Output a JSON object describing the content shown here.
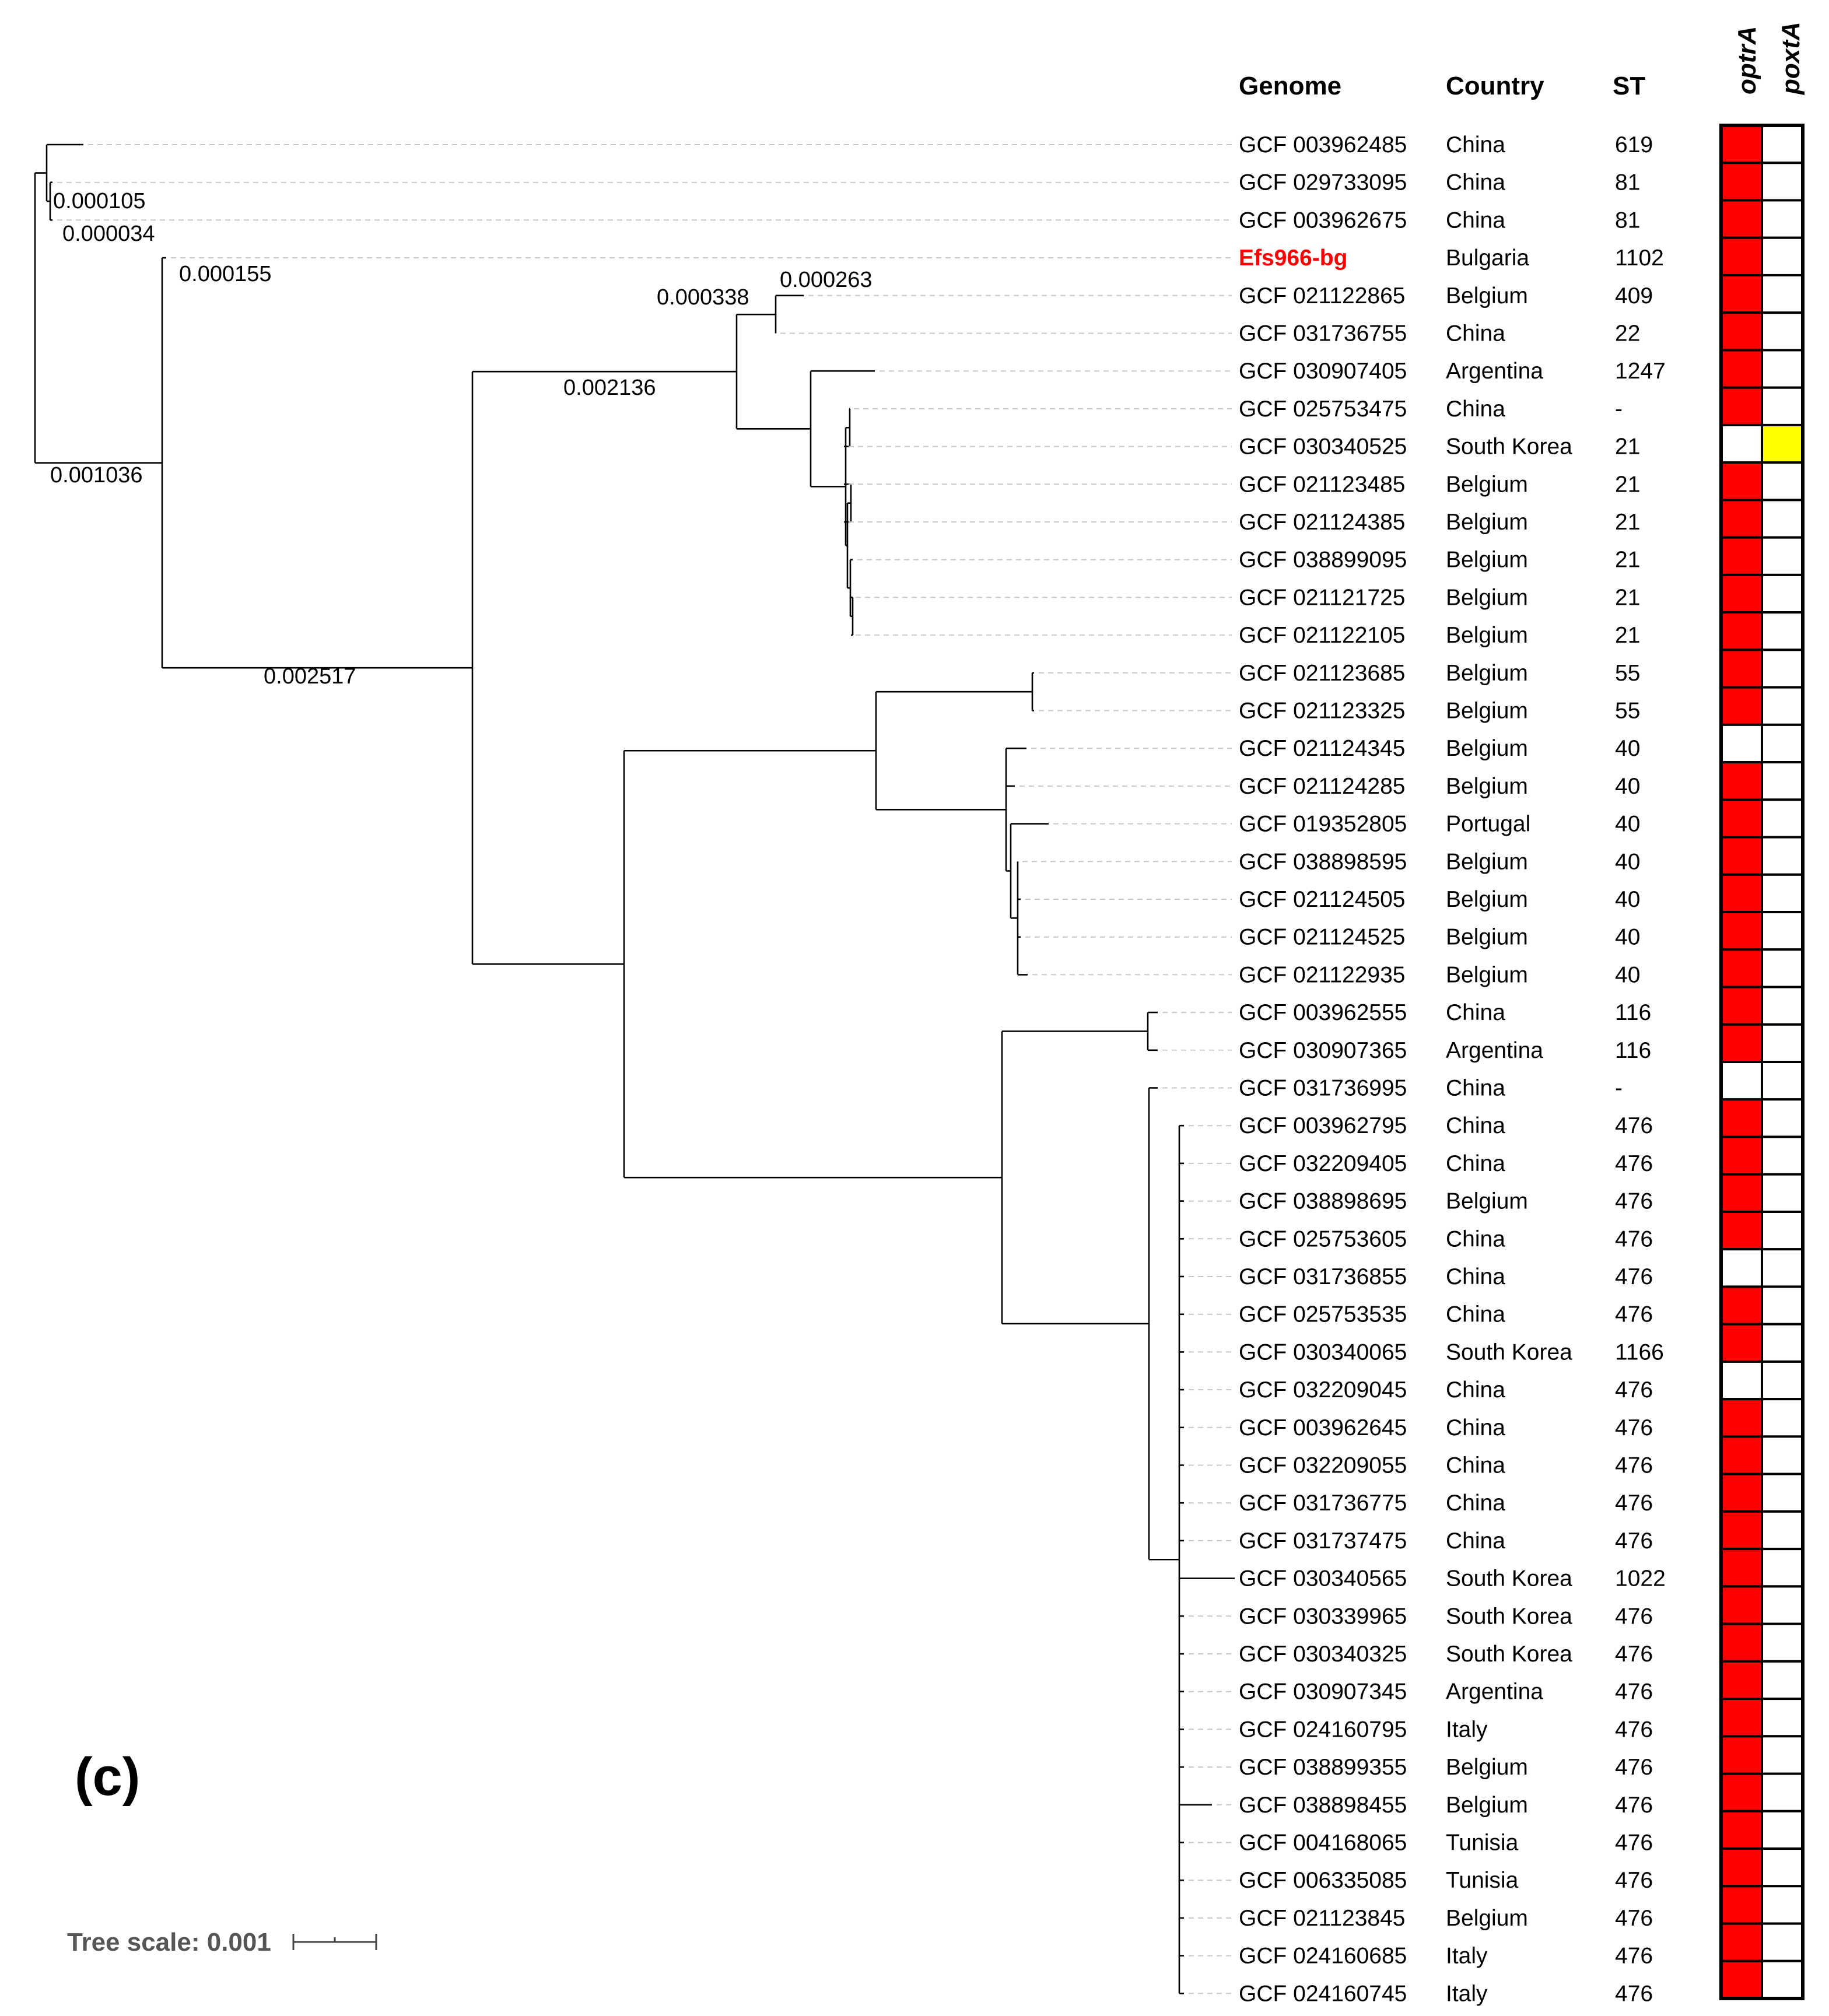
{
  "figure_label": "(c)",
  "headers": {
    "genome": "Genome",
    "country": "Country",
    "st": "ST",
    "optrA": "optrA",
    "poxtA": "poxtA"
  },
  "tree_scale": {
    "label": "Tree scale: 0.001"
  },
  "colors": {
    "present_optrA": "#ff0000",
    "present_poxtA": "#ffff00",
    "absent": "#ffffff",
    "highlight_text": "#ff0000"
  },
  "branch_lengths": [
    "0.000105",
    "0.000034",
    "0.000155",
    "0.000263",
    "0.000338",
    "0.002136",
    "0.001036",
    "0.002517"
  ],
  "rows": [
    {
      "genome": "GCF 003962485",
      "country": "China",
      "st": "619",
      "optrA": 1,
      "poxtA": 0
    },
    {
      "genome": "GCF 029733095",
      "country": "China",
      "st": "81",
      "optrA": 1,
      "poxtA": 0
    },
    {
      "genome": "GCF 003962675",
      "country": "China",
      "st": "81",
      "optrA": 1,
      "poxtA": 0
    },
    {
      "genome": "Efs966-bg",
      "country": "Bulgaria",
      "st": "1102",
      "optrA": 1,
      "poxtA": 0,
      "highlight": true
    },
    {
      "genome": "GCF 021122865",
      "country": "Belgium",
      "st": "409",
      "optrA": 1,
      "poxtA": 0
    },
    {
      "genome": "GCF 031736755",
      "country": "China",
      "st": "22",
      "optrA": 1,
      "poxtA": 0
    },
    {
      "genome": "GCF 030907405",
      "country": "Argentina",
      "st": "1247",
      "optrA": 1,
      "poxtA": 0
    },
    {
      "genome": "GCF 025753475",
      "country": "China",
      "st": "-",
      "optrA": 1,
      "poxtA": 0
    },
    {
      "genome": "GCF 030340525",
      "country": "South Korea",
      "st": "21",
      "optrA": 0,
      "poxtA": 1
    },
    {
      "genome": "GCF 021123485",
      "country": "Belgium",
      "st": "21",
      "optrA": 1,
      "poxtA": 0
    },
    {
      "genome": "GCF 021124385",
      "country": "Belgium",
      "st": "21",
      "optrA": 1,
      "poxtA": 0
    },
    {
      "genome": "GCF 038899095",
      "country": "Belgium",
      "st": "21",
      "optrA": 1,
      "poxtA": 0
    },
    {
      "genome": "GCF 021121725",
      "country": "Belgium",
      "st": "21",
      "optrA": 1,
      "poxtA": 0
    },
    {
      "genome": "GCF 021122105",
      "country": "Belgium",
      "st": "21",
      "optrA": 1,
      "poxtA": 0
    },
    {
      "genome": "GCF 021123685",
      "country": "Belgium",
      "st": "55",
      "optrA": 1,
      "poxtA": 0
    },
    {
      "genome": "GCF 021123325",
      "country": "Belgium",
      "st": "55",
      "optrA": 1,
      "poxtA": 0
    },
    {
      "genome": "GCF 021124345",
      "country": "Belgium",
      "st": "40",
      "optrA": 0,
      "poxtA": 0
    },
    {
      "genome": "GCF 021124285",
      "country": "Belgium",
      "st": "40",
      "optrA": 1,
      "poxtA": 0
    },
    {
      "genome": "GCF 019352805",
      "country": "Portugal",
      "st": "40",
      "optrA": 1,
      "poxtA": 0
    },
    {
      "genome": "GCF 038898595",
      "country": "Belgium",
      "st": "40",
      "optrA": 1,
      "poxtA": 0
    },
    {
      "genome": "GCF 021124505",
      "country": "Belgium",
      "st": "40",
      "optrA": 1,
      "poxtA": 0
    },
    {
      "genome": "GCF 021124525",
      "country": "Belgium",
      "st": "40",
      "optrA": 1,
      "poxtA": 0
    },
    {
      "genome": "GCF 021122935",
      "country": "Belgium",
      "st": "40",
      "optrA": 1,
      "poxtA": 0
    },
    {
      "genome": "GCF 003962555",
      "country": "China",
      "st": "116",
      "optrA": 1,
      "poxtA": 0
    },
    {
      "genome": "GCF 030907365",
      "country": "Argentina",
      "st": "116",
      "optrA": 1,
      "poxtA": 0
    },
    {
      "genome": "GCF 031736995",
      "country": "China",
      "st": "-",
      "optrA": 0,
      "poxtA": 0
    },
    {
      "genome": "GCF 003962795",
      "country": "China",
      "st": "476",
      "optrA": 1,
      "poxtA": 0
    },
    {
      "genome": "GCF 032209405",
      "country": "China",
      "st": "476",
      "optrA": 1,
      "poxtA": 0
    },
    {
      "genome": "GCF 038898695",
      "country": "Belgium",
      "st": "476",
      "optrA": 1,
      "poxtA": 0
    },
    {
      "genome": "GCF 025753605",
      "country": "China",
      "st": "476",
      "optrA": 1,
      "poxtA": 0
    },
    {
      "genome": "GCF 031736855",
      "country": "China",
      "st": "476",
      "optrA": 0,
      "poxtA": 0
    },
    {
      "genome": "GCF 025753535",
      "country": "China",
      "st": "476",
      "optrA": 1,
      "poxtA": 0
    },
    {
      "genome": "GCF 030340065",
      "country": "South Korea",
      "st": "1166",
      "optrA": 1,
      "poxtA": 0
    },
    {
      "genome": "GCF 032209045",
      "country": "China",
      "st": "476",
      "optrA": 0,
      "poxtA": 0
    },
    {
      "genome": "GCF 003962645",
      "country": "China",
      "st": "476",
      "optrA": 1,
      "poxtA": 0
    },
    {
      "genome": "GCF 032209055",
      "country": "China",
      "st": "476",
      "optrA": 1,
      "poxtA": 0
    },
    {
      "genome": "GCF 031736775",
      "country": "China",
      "st": "476",
      "optrA": 1,
      "poxtA": 0
    },
    {
      "genome": "GCF 031737475",
      "country": "China",
      "st": "476",
      "optrA": 1,
      "poxtA": 0
    },
    {
      "genome": "GCF 030340565",
      "country": "South Korea",
      "st": "1022",
      "optrA": 1,
      "poxtA": 0
    },
    {
      "genome": "GCF 030339965",
      "country": "South Korea",
      "st": "476",
      "optrA": 1,
      "poxtA": 0
    },
    {
      "genome": "GCF 030340325",
      "country": "South Korea",
      "st": "476",
      "optrA": 1,
      "poxtA": 0
    },
    {
      "genome": "GCF 030907345",
      "country": "Argentina",
      "st": "476",
      "optrA": 1,
      "poxtA": 0
    },
    {
      "genome": "GCF 024160795",
      "country": "Italy",
      "st": "476",
      "optrA": 1,
      "poxtA": 0
    },
    {
      "genome": "GCF 038899355",
      "country": "Belgium",
      "st": "476",
      "optrA": 1,
      "poxtA": 0
    },
    {
      "genome": "GCF 038898455",
      "country": "Belgium",
      "st": "476",
      "optrA": 1,
      "poxtA": 0
    },
    {
      "genome": "GCF 004168065",
      "country": "Tunisia",
      "st": "476",
      "optrA": 1,
      "poxtA": 0
    },
    {
      "genome": "GCF 006335085",
      "country": "Tunisia",
      "st": "476",
      "optrA": 1,
      "poxtA": 0
    },
    {
      "genome": "GCF 021123845",
      "country": "Belgium",
      "st": "476",
      "optrA": 1,
      "poxtA": 0
    },
    {
      "genome": "GCF 024160685",
      "country": "Italy",
      "st": "476",
      "optrA": 1,
      "poxtA": 0
    },
    {
      "genome": "GCF 024160745",
      "country": "Italy",
      "st": "476",
      "optrA": 1,
      "poxtA": 0
    }
  ]
}
